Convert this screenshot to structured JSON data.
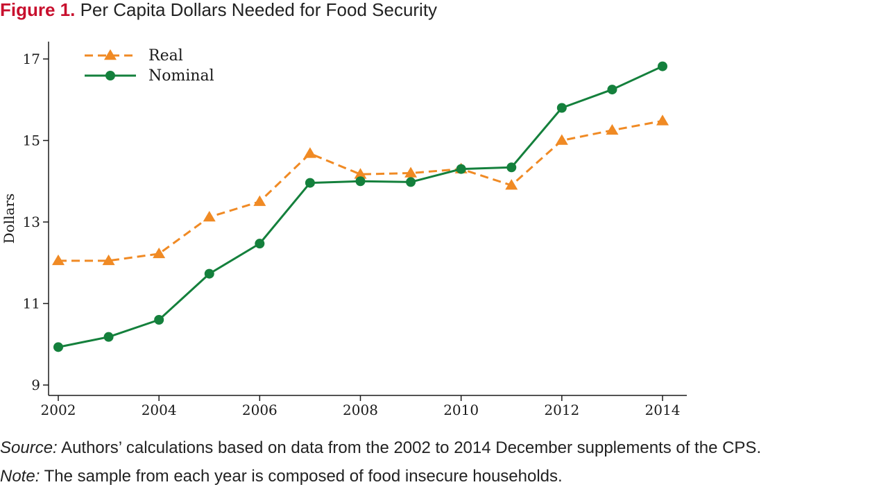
{
  "title": {
    "figure_label": "Figure 1.",
    "text": "Per Capita Dollars Needed for Food Security"
  },
  "footnotes": {
    "source_label": "Source:",
    "source_text": "Authors’ calculations based on data from the 2002 to 2014 December supplements of the CPS.",
    "note_label": "Note:",
    "note_text": "The sample from each year is composed of food insecure households."
  },
  "colors": {
    "figure_label": "#c8102e",
    "real": "#f08a24",
    "nominal": "#14803c",
    "axis": "#1a1a1a"
  },
  "chart_data": {
    "type": "line",
    "xlabel": "",
    "ylabel": "Dollars",
    "xlim": [
      2002,
      2014
    ],
    "ylim": [
      9,
      17
    ],
    "xticks": [
      2002,
      2004,
      2006,
      2008,
      2010,
      2012,
      2014
    ],
    "yticks": [
      9,
      11,
      13,
      15,
      17
    ],
    "grid": false,
    "legend_position": "top-left",
    "x": [
      2002,
      2003,
      2004,
      2005,
      2006,
      2007,
      2008,
      2009,
      2010,
      2011,
      2012,
      2013,
      2014
    ],
    "series": [
      {
        "name": "Real",
        "style": "dashed",
        "marker": "triangle",
        "color": "#f08a24",
        "values": [
          12.05,
          12.05,
          12.22,
          13.12,
          13.5,
          14.68,
          14.17,
          14.2,
          14.3,
          13.9,
          15.0,
          15.25,
          15.48
        ]
      },
      {
        "name": "Nominal",
        "style": "solid",
        "marker": "circle",
        "color": "#14803c",
        "values": [
          9.93,
          10.18,
          10.6,
          11.73,
          12.47,
          13.96,
          14.0,
          13.98,
          14.3,
          14.34,
          15.8,
          16.25,
          16.82
        ]
      }
    ]
  }
}
